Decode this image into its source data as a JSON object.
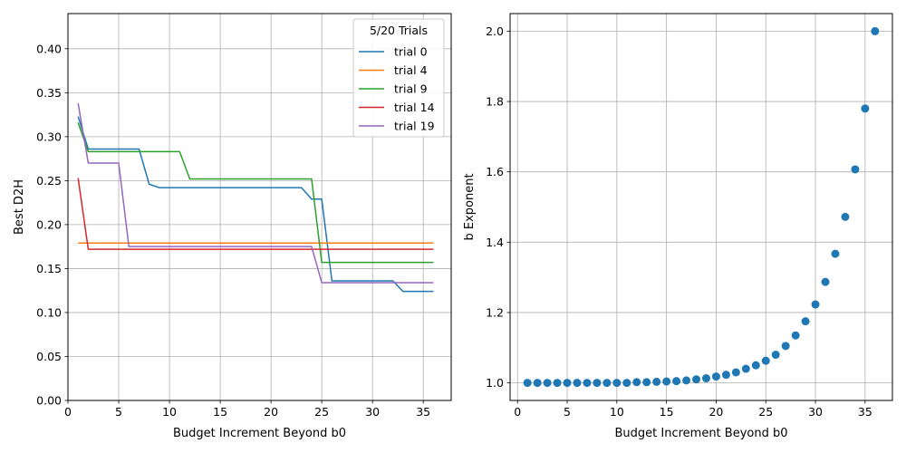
{
  "chart_data": [
    {
      "type": "line",
      "title": "",
      "xlabel": "Budget Increment Beyond b0",
      "ylabel": "Best D2H",
      "xlim": [
        0,
        37.75
      ],
      "ylim": [
        0,
        0.44
      ],
      "xticks": [
        0,
        5,
        10,
        15,
        20,
        25,
        30,
        35
      ],
      "yticks": [
        0.0,
        0.05,
        0.1,
        0.15,
        0.2,
        0.25,
        0.3,
        0.35,
        0.4
      ],
      "ytick_labels": [
        "0.00",
        "0.05",
        "0.10",
        "0.15",
        "0.20",
        "0.25",
        "0.30",
        "0.35",
        "0.40"
      ],
      "grid": true,
      "legend": {
        "title": "5/20 Trials",
        "position": "upper right"
      },
      "x": [
        1,
        2,
        3,
        4,
        5,
        6,
        7,
        8,
        9,
        10,
        11,
        12,
        13,
        14,
        15,
        16,
        17,
        18,
        19,
        20,
        21,
        22,
        23,
        24,
        25,
        26,
        27,
        28,
        29,
        30,
        31,
        32,
        33,
        34,
        35,
        36
      ],
      "series": [
        {
          "name": "trial 0",
          "color": "#1f77b4",
          "values": [
            0.323,
            0.286,
            0.286,
            0.286,
            0.286,
            0.286,
            0.286,
            0.246,
            0.242,
            0.242,
            0.242,
            0.242,
            0.242,
            0.242,
            0.242,
            0.242,
            0.242,
            0.242,
            0.242,
            0.242,
            0.242,
            0.242,
            0.242,
            0.229,
            0.229,
            0.136,
            0.136,
            0.136,
            0.136,
            0.136,
            0.136,
            0.136,
            0.124,
            0.124,
            0.124,
            0.124
          ]
        },
        {
          "name": "trial 4",
          "color": "#ff7f0e",
          "values": [
            0.179,
            0.179,
            0.179,
            0.179,
            0.179,
            0.179,
            0.179,
            0.179,
            0.179,
            0.179,
            0.179,
            0.179,
            0.179,
            0.179,
            0.179,
            0.179,
            0.179,
            0.179,
            0.179,
            0.179,
            0.179,
            0.179,
            0.179,
            0.179,
            0.179,
            0.179,
            0.179,
            0.179,
            0.179,
            0.179,
            0.179,
            0.179,
            0.179,
            0.179,
            0.179,
            0.179
          ]
        },
        {
          "name": "trial 9",
          "color": "#2ca02c",
          "values": [
            0.316,
            0.283,
            0.283,
            0.283,
            0.283,
            0.283,
            0.283,
            0.283,
            0.283,
            0.283,
            0.283,
            0.252,
            0.252,
            0.252,
            0.252,
            0.252,
            0.252,
            0.252,
            0.252,
            0.252,
            0.252,
            0.252,
            0.252,
            0.252,
            0.157,
            0.157,
            0.157,
            0.157,
            0.157,
            0.157,
            0.157,
            0.157,
            0.157,
            0.157,
            0.157,
            0.157
          ]
        },
        {
          "name": "trial 14",
          "color": "#d62728",
          "values": [
            0.253,
            0.172,
            0.172,
            0.172,
            0.172,
            0.172,
            0.172,
            0.172,
            0.172,
            0.172,
            0.172,
            0.172,
            0.172,
            0.172,
            0.172,
            0.172,
            0.172,
            0.172,
            0.172,
            0.172,
            0.172,
            0.172,
            0.172,
            0.172,
            0.172,
            0.172,
            0.172,
            0.172,
            0.172,
            0.172,
            0.172,
            0.172,
            0.172,
            0.172,
            0.172,
            0.172
          ]
        },
        {
          "name": "trial 19",
          "color": "#9467bd",
          "values": [
            0.338,
            0.27,
            0.27,
            0.27,
            0.27,
            0.175,
            0.175,
            0.175,
            0.175,
            0.175,
            0.175,
            0.175,
            0.175,
            0.175,
            0.175,
            0.175,
            0.175,
            0.175,
            0.175,
            0.175,
            0.175,
            0.175,
            0.175,
            0.175,
            0.134,
            0.134,
            0.134,
            0.134,
            0.134,
            0.134,
            0.134,
            0.134,
            0.134,
            0.134,
            0.134,
            0.134
          ]
        }
      ]
    },
    {
      "type": "scatter",
      "title": "",
      "xlabel": "Budget Increment Beyond b0",
      "ylabel": "b Exponent",
      "xlim": [
        -0.75,
        37.75
      ],
      "ylim": [
        0.95,
        2.05
      ],
      "xticks": [
        0,
        5,
        10,
        15,
        20,
        25,
        30,
        35
      ],
      "yticks": [
        1.0,
        1.2,
        1.4,
        1.6,
        1.8,
        2.0
      ],
      "ytick_labels": [
        "1.0",
        "1.2",
        "1.4",
        "1.6",
        "1.8",
        "2.0"
      ],
      "grid": true,
      "color": "#1f77b4",
      "x": [
        1,
        2,
        3,
        4,
        5,
        6,
        7,
        8,
        9,
        10,
        11,
        12,
        13,
        14,
        15,
        16,
        17,
        18,
        19,
        20,
        21,
        22,
        23,
        24,
        25,
        26,
        27,
        28,
        29,
        30,
        31,
        32,
        33,
        34,
        35,
        36
      ],
      "y": [
        1.0,
        1.0,
        1.0,
        1.0,
        1.0,
        1.0,
        1.0,
        1.0,
        1.0,
        1.0,
        1.0,
        1.002,
        1.002,
        1.003,
        1.004,
        1.005,
        1.007,
        1.01,
        1.013,
        1.018,
        1.023,
        1.03,
        1.04,
        1.05,
        1.063,
        1.08,
        1.105,
        1.135,
        1.175,
        1.223,
        1.287,
        1.367,
        1.472,
        1.607,
        1.78,
        2.0
      ]
    }
  ]
}
